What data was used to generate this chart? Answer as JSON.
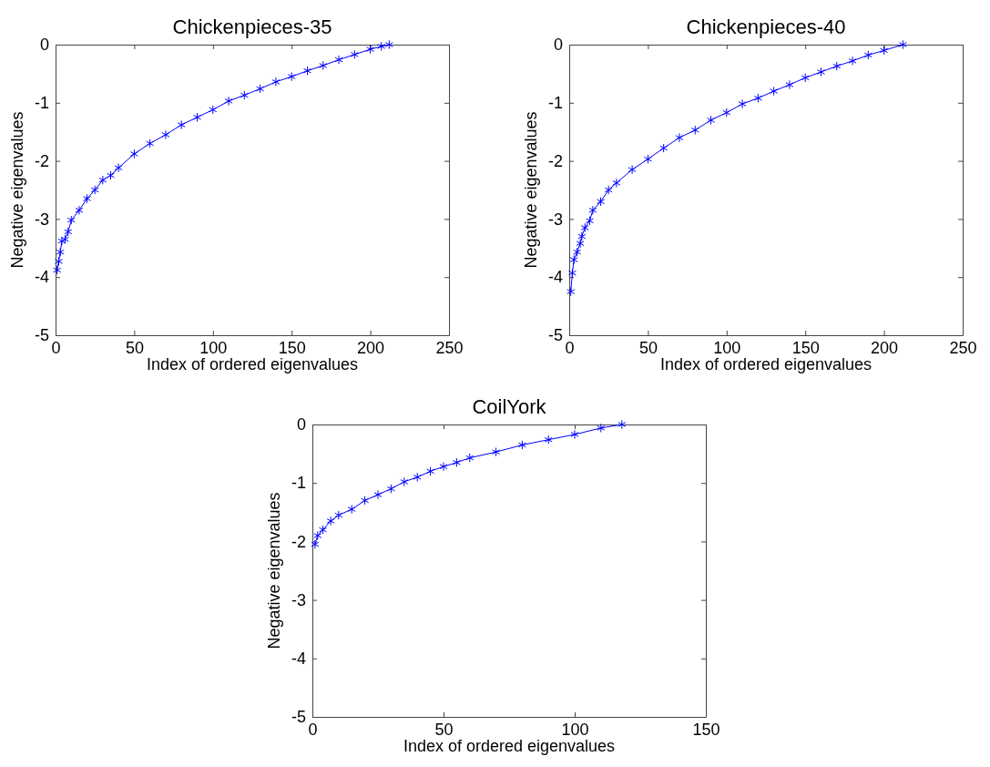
{
  "chart_data": [
    {
      "type": "line",
      "title": "Chickenpieces-35",
      "xlabel": "Index of ordered eigenvalues",
      "ylabel": "Negative eigenvalues",
      "marker": "cross",
      "line_style": "solid",
      "xlim": [
        0,
        250
      ],
      "xticks": [
        0,
        50,
        100,
        150,
        200,
        250
      ],
      "ylim": [
        -5,
        0
      ],
      "yticks": [
        -5,
        -4,
        -3,
        -2,
        -1,
        0
      ],
      "series": [
        {
          "color": "#0000ff",
          "x": [
            1,
            2,
            3,
            4,
            6,
            8,
            10,
            15,
            20,
            25,
            30,
            35,
            40,
            50,
            60,
            70,
            80,
            90,
            100,
            110,
            120,
            130,
            140,
            150,
            160,
            170,
            180,
            190,
            200,
            207,
            212
          ],
          "values": [
            -3.88,
            -3.73,
            -3.57,
            -3.38,
            -3.35,
            -3.22,
            -3.02,
            -2.85,
            -2.65,
            -2.5,
            -2.33,
            -2.25,
            -2.12,
            -1.88,
            -1.7,
            -1.55,
            -1.38,
            -1.25,
            -1.12,
            -0.97,
            -0.87,
            -0.76,
            -0.64,
            -0.55,
            -0.45,
            -0.36,
            -0.26,
            -0.17,
            -0.08,
            -0.03,
            0
          ]
        }
      ]
    },
    {
      "type": "line",
      "title": "Chickenpieces-40",
      "xlabel": "Index of ordered eigenvalues",
      "ylabel": "Negative eigenvalues",
      "marker": "cross",
      "line_style": "solid",
      "xlim": [
        0,
        250
      ],
      "xticks": [
        0,
        50,
        100,
        150,
        200,
        250
      ],
      "ylim": [
        -5,
        0
      ],
      "yticks": [
        -5,
        -4,
        -3,
        -2,
        -1,
        0
      ],
      "series": [
        {
          "color": "#0000ff",
          "x": [
            1,
            2,
            3,
            5,
            7,
            8,
            10,
            13,
            15,
            20,
            25,
            30,
            40,
            50,
            60,
            70,
            80,
            90,
            100,
            110,
            120,
            130,
            140,
            150,
            160,
            170,
            180,
            190,
            200,
            212
          ],
          "values": [
            -4.25,
            -3.93,
            -3.7,
            -3.57,
            -3.42,
            -3.3,
            -3.15,
            -3.03,
            -2.85,
            -2.7,
            -2.5,
            -2.38,
            -2.15,
            -1.97,
            -1.78,
            -1.6,
            -1.47,
            -1.3,
            -1.17,
            -1.02,
            -0.92,
            -0.8,
            -0.69,
            -0.57,
            -0.47,
            -0.37,
            -0.28,
            -0.18,
            -0.1,
            0
          ]
        }
      ]
    },
    {
      "type": "line",
      "title": "CoilYork",
      "xlabel": "Index of ordered eigenvalues",
      "ylabel": "Negative eigenvalues",
      "marker": "cross",
      "line_style": "solid",
      "xlim": [
        0,
        150
      ],
      "xticks": [
        0,
        50,
        100,
        150
      ],
      "ylim": [
        -5,
        0
      ],
      "yticks": [
        -5,
        -4,
        -3,
        -2,
        -1,
        0
      ],
      "series": [
        {
          "color": "#0000ff",
          "x": [
            1,
            2,
            4,
            7,
            10,
            15,
            20,
            25,
            30,
            35,
            40,
            45,
            50,
            55,
            60,
            70,
            80,
            90,
            100,
            110,
            118
          ],
          "values": [
            -2.05,
            -1.9,
            -1.8,
            -1.65,
            -1.55,
            -1.45,
            -1.3,
            -1.2,
            -1.1,
            -0.98,
            -0.9,
            -0.8,
            -0.72,
            -0.65,
            -0.57,
            -0.47,
            -0.35,
            -0.26,
            -0.17,
            -0.06,
            0
          ]
        }
      ]
    }
  ]
}
